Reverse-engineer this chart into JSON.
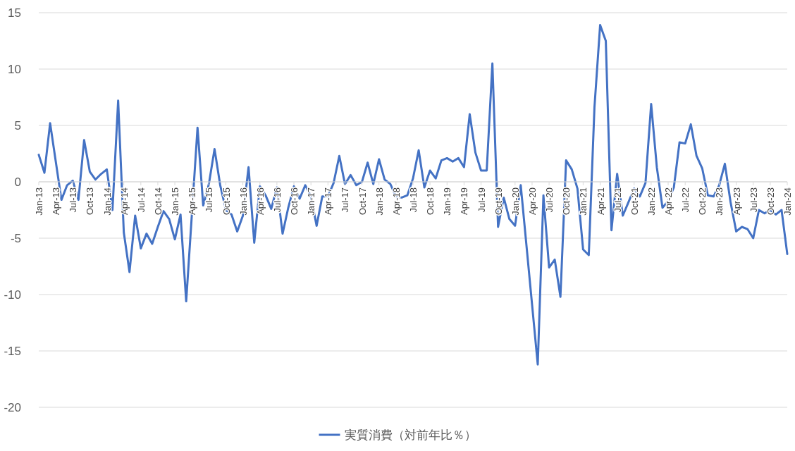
{
  "chart_data": {
    "type": "line",
    "categories": [
      "Jan-13",
      null,
      null,
      "Apr-13",
      null,
      null,
      "Jul-13",
      null,
      null,
      "Oct-13",
      null,
      null,
      "Jan-14",
      null,
      null,
      "Apr-14",
      null,
      null,
      "Jul-14",
      null,
      null,
      "Oct-14",
      null,
      null,
      "Jan-15",
      null,
      null,
      "Apr-15",
      null,
      null,
      "Jul-15",
      null,
      null,
      "Oct-15",
      null,
      null,
      "Jan-16",
      null,
      null,
      "Apr-16",
      null,
      null,
      "Jul-16",
      null,
      null,
      "Oct-16",
      null,
      null,
      "Jan-17",
      null,
      null,
      "Apr-17",
      null,
      null,
      "Jul-17",
      null,
      null,
      "Oct-17",
      null,
      null,
      "Jan-18",
      null,
      null,
      "Apr-18",
      null,
      null,
      "Jul-18",
      null,
      null,
      "Oct-18",
      null,
      null,
      "Jan-19",
      null,
      null,
      "Apr-19",
      null,
      null,
      "Jul-19",
      null,
      null,
      "Oct-19",
      null,
      null,
      "Jan-20",
      null,
      null,
      "Apr-20",
      null,
      null,
      "Jul-20",
      null,
      null,
      "Oct-20",
      null,
      null,
      "Jan-21",
      null,
      null,
      "Apr-21",
      null,
      null,
      "Jul-21",
      null,
      null,
      "Oct-21",
      null,
      null,
      "Jan-22",
      null,
      null,
      "Apr-22",
      null,
      null,
      "Jul-22",
      null,
      null,
      "Oct-22",
      null,
      null,
      "Jan-23",
      null,
      null,
      "Apr-23",
      null,
      null,
      "Jul-23",
      null,
      null,
      "Oct-23",
      null,
      null,
      "Jan-24"
    ],
    "series": [
      {
        "name": "実質消費（対前年比％）",
        "color": "#4472c4",
        "values": [
          2.4,
          0.8,
          5.2,
          1.8,
          -1.6,
          -0.3,
          0.1,
          -1.6,
          3.7,
          0.9,
          0.2,
          0.7,
          1.1,
          -2.5,
          7.2,
          -4.5,
          -8.0,
          -3.0,
          -5.9,
          -4.6,
          -5.5,
          -4.0,
          -2.6,
          -3.3,
          -5.1,
          -2.9,
          -10.6,
          -2.9,
          4.8,
          -2.1,
          -0.2,
          2.9,
          -0.3,
          -2.5,
          -2.9,
          -4.4,
          -3.0,
          1.3,
          -5.4,
          -0.4,
          -1.2,
          -2.4,
          -0.5,
          -4.6,
          -2.3,
          -0.4,
          -1.5,
          -0.3,
          -1.3,
          -3.9,
          -1.3,
          -1.3,
          -0.1,
          2.3,
          -0.2,
          0.6,
          -0.3,
          0.0,
          1.7,
          -0.2,
          2.0,
          0.2,
          -0.2,
          -1.3,
          -1.4,
          -1.2,
          0.3,
          2.8,
          -0.5,
          1.0,
          0.3,
          1.9,
          2.1,
          1.8,
          2.1,
          1.3,
          6.0,
          2.6,
          1.0,
          1.0,
          10.5,
          -4.0,
          -1.4,
          -3.3,
          -3.9,
          -0.3,
          -5.6,
          -10.9,
          -16.2,
          -1.2,
          -7.6,
          -6.9,
          -10.2,
          1.9,
          1.1,
          -0.6,
          -6.0,
          -6.5,
          6.6,
          13.9,
          12.5,
          -4.3,
          0.7,
          -3.0,
          -1.8,
          -0.6,
          -1.3,
          -0.1,
          6.9,
          1.3,
          -2.3,
          -1.7,
          -0.5,
          3.5,
          3.4,
          5.1,
          2.3,
          1.2,
          -1.2,
          -1.3,
          -0.3,
          1.6,
          -1.8,
          -4.4,
          -4.0,
          -4.2,
          -5.0,
          -2.5,
          -2.8,
          -2.5,
          -2.9,
          -2.5,
          -6.4
        ]
      }
    ],
    "ylim": [
      -20,
      15
    ],
    "yticks": [
      -20,
      -15,
      -10,
      -5,
      0,
      5,
      10,
      15
    ],
    "grid": "y",
    "legend": "bottom"
  }
}
